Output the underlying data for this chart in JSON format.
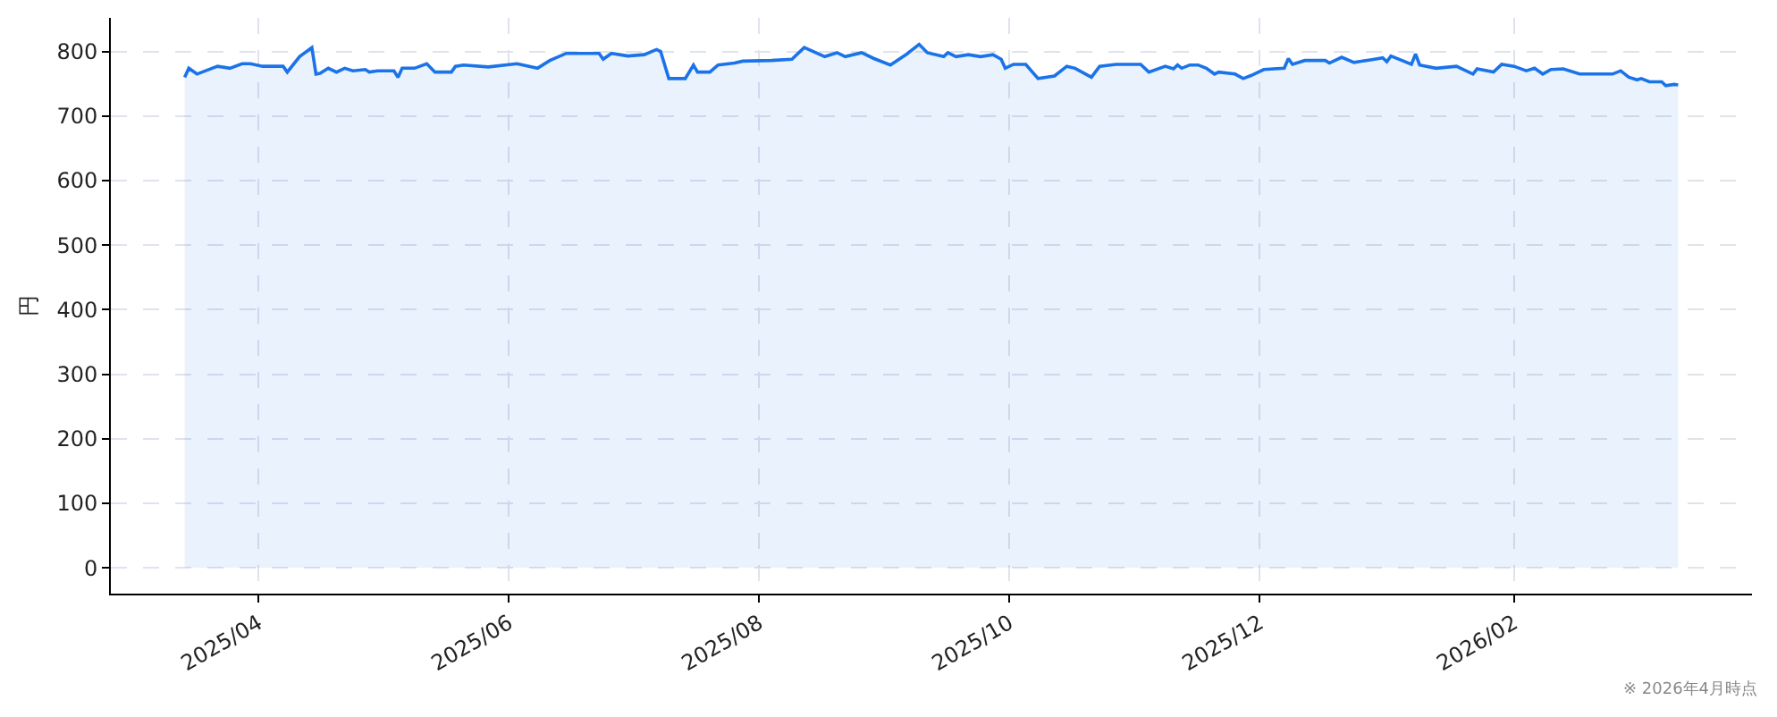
{
  "chart_data": {
    "type": "area",
    "ylabel": "円",
    "annotations": [
      "※ 2026年4月時点"
    ],
    "color": "#1a73e8",
    "grid": true,
    "x": [
      "2025-03-14",
      "2025-03-15",
      "2025-03-17",
      "2025-03-22",
      "2025-03-25",
      "2025-03-28",
      "2025-03-30",
      "2025-04-02",
      "2025-04-07",
      "2025-04-08",
      "2025-04-11",
      "2025-04-14",
      "2025-04-15",
      "2025-04-16",
      "2025-04-18",
      "2025-04-20",
      "2025-04-22",
      "2025-04-24",
      "2025-04-27",
      "2025-04-28",
      "2025-04-30",
      "2025-05-04",
      "2025-05-05",
      "2025-05-06",
      "2025-05-09",
      "2025-05-12",
      "2025-05-14",
      "2025-05-18",
      "2025-05-19",
      "2025-05-21",
      "2025-05-27",
      "2025-06-03",
      "2025-06-08",
      "2025-06-11",
      "2025-06-15",
      "2025-06-23",
      "2025-06-24",
      "2025-06-26",
      "2025-06-30",
      "2025-07-04",
      "2025-07-07",
      "2025-07-08",
      "2025-07-10",
      "2025-07-14",
      "2025-07-16",
      "2025-07-17",
      "2025-07-20",
      "2025-07-22",
      "2025-07-26",
      "2025-07-28",
      "2025-08-04",
      "2025-08-09",
      "2025-08-12",
      "2025-08-17",
      "2025-08-20",
      "2025-08-22",
      "2025-08-26",
      "2025-08-29",
      "2025-09-02",
      "2025-09-06",
      "2025-09-09",
      "2025-09-11",
      "2025-09-15",
      "2025-09-16",
      "2025-09-18",
      "2025-09-21",
      "2025-09-24",
      "2025-09-27",
      "2025-09-29",
      "2025-09-30",
      "2025-10-02",
      "2025-10-05",
      "2025-10-08",
      "2025-10-12",
      "2025-10-15",
      "2025-10-17",
      "2025-10-21",
      "2025-10-23",
      "2025-10-27",
      "2025-11-02",
      "2025-11-04",
      "2025-11-08",
      "2025-11-10",
      "2025-11-11",
      "2025-11-12",
      "2025-11-14",
      "2025-11-16",
      "2025-11-18",
      "2025-11-20",
      "2025-11-21",
      "2025-11-25",
      "2025-11-27",
      "2025-11-29",
      "2025-12-02",
      "2025-12-07",
      "2025-12-08",
      "2025-12-09",
      "2025-12-12",
      "2025-12-17",
      "2025-12-18",
      "2025-12-21",
      "2025-12-24",
      "2025-12-28",
      "2025-12-31",
      "2026-01-01",
      "2026-01-02",
      "2026-01-07",
      "2026-01-08",
      "2026-01-09",
      "2026-01-13",
      "2026-01-18",
      "2026-01-19",
      "2026-01-22",
      "2026-01-23",
      "2026-01-27",
      "2026-01-29",
      "2026-02-01",
      "2026-02-04",
      "2026-02-06",
      "2026-02-08",
      "2026-02-10",
      "2026-02-13",
      "2026-02-17",
      "2026-02-25",
      "2026-02-27",
      "2026-03-01",
      "2026-03-03",
      "2026-03-04",
      "2026-03-06",
      "2026-03-09",
      "2026-03-10",
      "2026-03-12",
      "2026-03-13"
    ],
    "values": [
      760,
      774,
      765,
      777,
      774,
      781,
      781,
      777,
      777,
      768,
      792,
      806,
      765,
      766,
      774,
      768,
      774,
      770,
      772,
      768,
      770,
      770,
      760,
      774,
      774,
      781,
      768,
      768,
      777,
      779,
      776,
      781,
      774,
      786,
      797,
      797,
      788,
      797,
      793,
      795,
      803,
      800,
      758,
      758,
      779,
      768,
      768,
      779,
      782,
      785,
      786,
      788,
      806,
      792,
      798,
      792,
      798,
      789,
      779,
      796,
      811,
      798,
      792,
      798,
      792,
      795,
      792,
      795,
      788,
      774,
      780,
      780,
      758,
      762,
      777,
      774,
      760,
      777,
      780,
      780,
      768,
      777,
      773,
      779,
      774,
      779,
      779,
      774,
      765,
      768,
      765,
      758,
      763,
      772,
      774,
      789,
      780,
      786,
      786,
      782,
      791,
      783,
      787,
      790,
      784,
      793,
      780,
      796,
      779,
      774,
      777,
      774,
      765,
      773,
      768,
      780,
      777,
      770,
      774,
      765,
      772,
      773,
      765,
      765,
      770,
      760,
      756,
      758,
      753,
      753,
      747,
      749,
      748
    ],
    "xlim": [
      "2025-02-24",
      "2026-03-31"
    ],
    "xticks": [
      {
        "value": "2025-04-01",
        "label": "2025/04"
      },
      {
        "value": "2025-06-01",
        "label": "2025/06"
      },
      {
        "value": "2025-08-01",
        "label": "2025/08"
      },
      {
        "value": "2025-10-01",
        "label": "2025/10"
      },
      {
        "value": "2025-12-01",
        "label": "2025/12"
      },
      {
        "value": "2026-02-01",
        "label": "2026/02"
      }
    ],
    "ylim": [
      -40,
      852
    ],
    "yticks": [
      0,
      100,
      200,
      300,
      400,
      500,
      600,
      700,
      800
    ]
  }
}
